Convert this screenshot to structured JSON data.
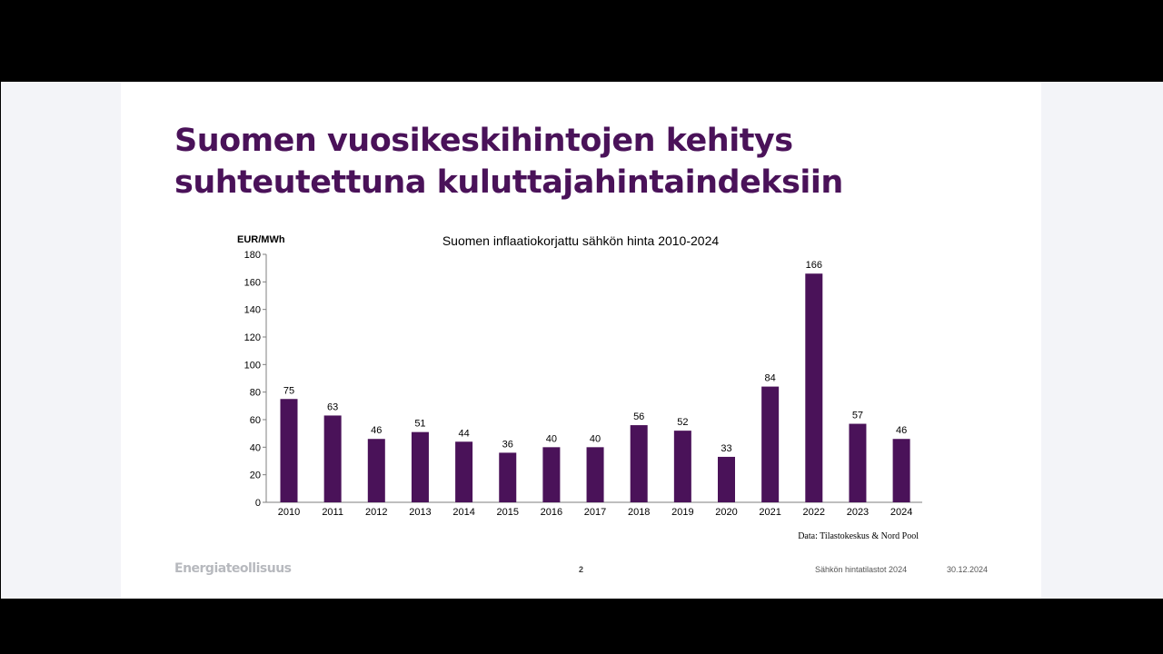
{
  "slide": {
    "title_line1": "Suomen vuosikeskihintojen kehitys",
    "title_line2": "suhteutettuna kuluttajahintaindeksiin",
    "source": "Data: Tilastokeskus & Nord Pool",
    "logo_text": "Energiateollisuus",
    "page_number": "2",
    "footer_doc": "Sähkön hintatilastot 2024",
    "footer_date": "30.12.2024"
  },
  "colors": {
    "bar": "#4a1259",
    "title": "#4a1259"
  },
  "chart_data": {
    "type": "bar",
    "title": "Suomen inflaatiokorjattu sähkön hinta 2010-2024",
    "ylabel": "EUR/MWh",
    "xlabel": "",
    "ylim": [
      0,
      180
    ],
    "yticks": [
      0,
      20,
      40,
      60,
      80,
      100,
      120,
      140,
      160,
      180
    ],
    "categories": [
      "2010",
      "2011",
      "2012",
      "2013",
      "2014",
      "2015",
      "2016",
      "2017",
      "2018",
      "2019",
      "2020",
      "2021",
      "2022",
      "2023",
      "2024"
    ],
    "values": [
      75,
      63,
      46,
      51,
      44,
      36,
      40,
      40,
      56,
      52,
      33,
      84,
      166,
      57,
      46
    ],
    "grid": false,
    "legend": "none"
  }
}
